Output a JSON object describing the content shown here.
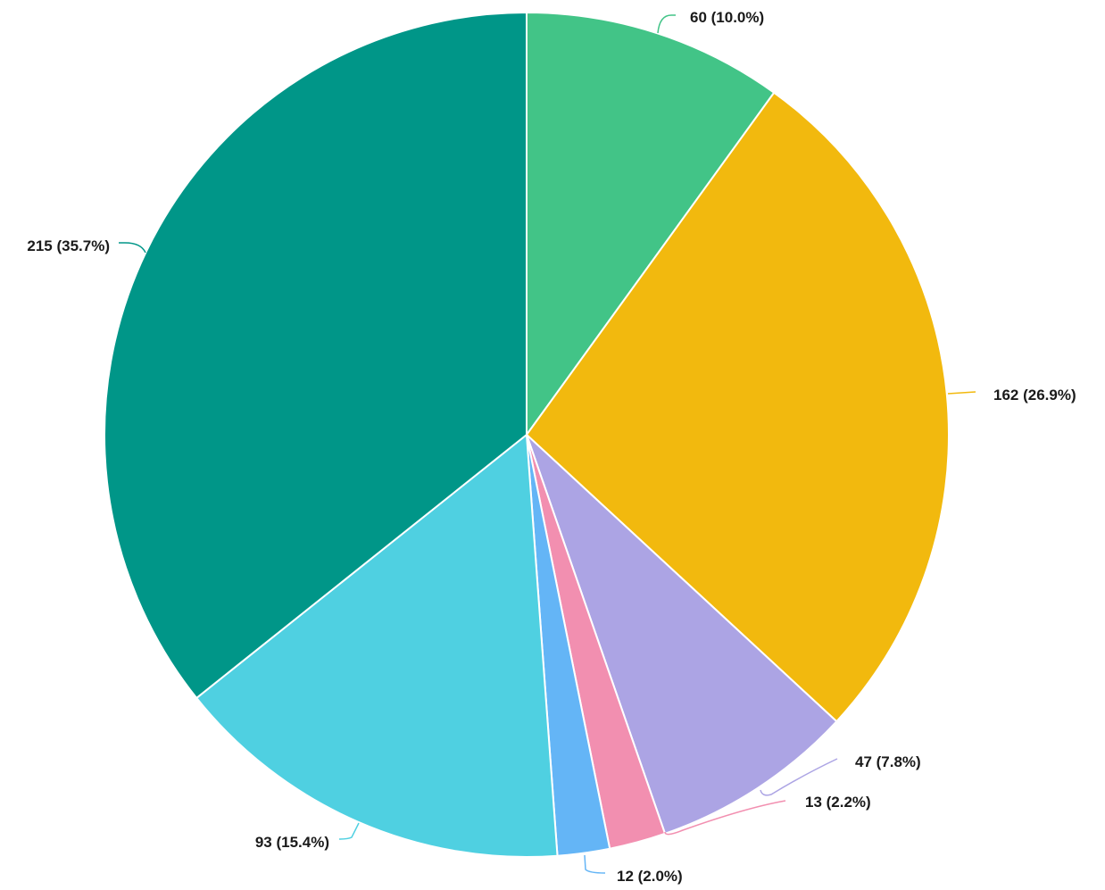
{
  "chart_data": {
    "type": "pie",
    "title": "",
    "start_angle_deg": 0,
    "direction": "clockwise",
    "legend": "none",
    "slices": [
      {
        "value": 60,
        "label": "60 (10.0%)",
        "color": "#42c487"
      },
      {
        "value": 162,
        "label": "162 (26.9%)",
        "color": "#f2b90e"
      },
      {
        "value": 47,
        "label": "47 (7.8%)",
        "color": "#aca4e4"
      },
      {
        "value": 13,
        "label": "13 (2.2%)",
        "color": "#f28fb0"
      },
      {
        "value": 12,
        "label": "12 (2.0%)",
        "color": "#64b5f6"
      },
      {
        "value": 93,
        "label": "93 (15.4%)",
        "color": "#4fd0e1"
      },
      {
        "value": 215,
        "label": "215 (35.7%)",
        "color": "#009688"
      }
    ]
  }
}
